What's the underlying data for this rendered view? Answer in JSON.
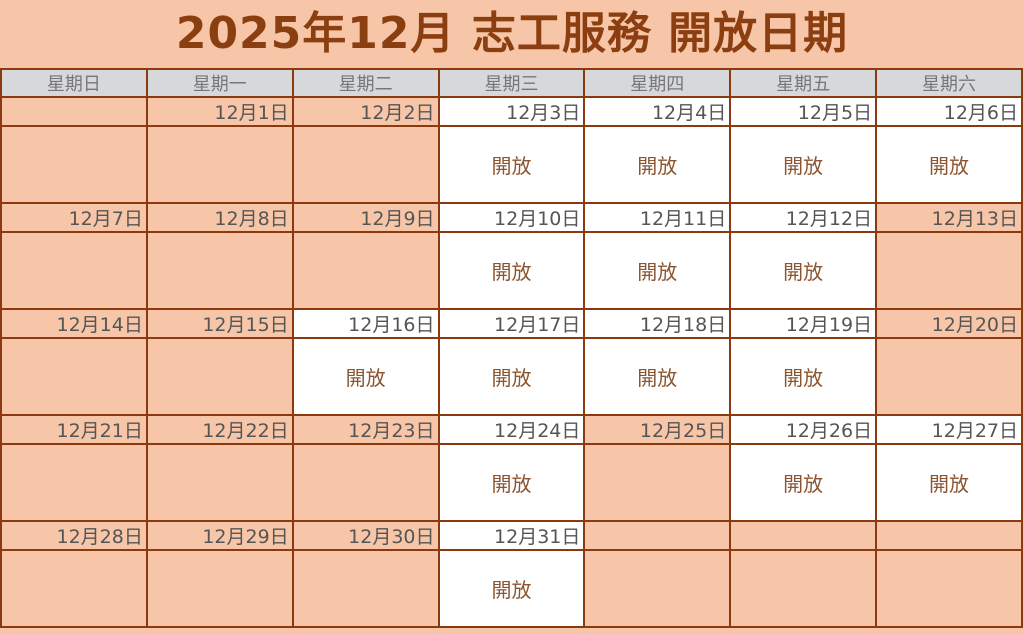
{
  "title": "2025年12月 志工服務 開放日期",
  "weekdays": [
    "星期日",
    "星期一",
    "星期二",
    "星期三",
    "星期四",
    "星期五",
    "星期六"
  ],
  "open_label": "開放",
  "colors": {
    "background": "#F7C6A8",
    "border": "#8B3A10",
    "title": "#8B3E0F",
    "header": "#D6D8DC",
    "open_cell": "#FFFFFF"
  },
  "weeks": [
    [
      {
        "date": "",
        "open": false
      },
      {
        "date": "12月1日",
        "open": false
      },
      {
        "date": "12月2日",
        "open": false
      },
      {
        "date": "12月3日",
        "open": true
      },
      {
        "date": "12月4日",
        "open": true
      },
      {
        "date": "12月5日",
        "open": true
      },
      {
        "date": "12月6日",
        "open": true
      }
    ],
    [
      {
        "date": "12月7日",
        "open": false
      },
      {
        "date": "12月8日",
        "open": false
      },
      {
        "date": "12月9日",
        "open": false
      },
      {
        "date": "12月10日",
        "open": true
      },
      {
        "date": "12月11日",
        "open": true
      },
      {
        "date": "12月12日",
        "open": true
      },
      {
        "date": "12月13日",
        "open": false
      }
    ],
    [
      {
        "date": "12月14日",
        "open": false
      },
      {
        "date": "12月15日",
        "open": false
      },
      {
        "date": "12月16日",
        "open": true
      },
      {
        "date": "12月17日",
        "open": true
      },
      {
        "date": "12月18日",
        "open": true
      },
      {
        "date": "12月19日",
        "open": true
      },
      {
        "date": "12月20日",
        "open": false
      }
    ],
    [
      {
        "date": "12月21日",
        "open": false
      },
      {
        "date": "12月22日",
        "open": false
      },
      {
        "date": "12月23日",
        "open": false
      },
      {
        "date": "12月24日",
        "open": true
      },
      {
        "date": "12月25日",
        "open": false
      },
      {
        "date": "12月26日",
        "open": true
      },
      {
        "date": "12月27日",
        "open": true
      }
    ],
    [
      {
        "date": "12月28日",
        "open": false
      },
      {
        "date": "12月29日",
        "open": false
      },
      {
        "date": "12月30日",
        "open": false
      },
      {
        "date": "12月31日",
        "open": true
      },
      {
        "date": "",
        "open": false
      },
      {
        "date": "",
        "open": false
      },
      {
        "date": "",
        "open": false
      }
    ]
  ]
}
